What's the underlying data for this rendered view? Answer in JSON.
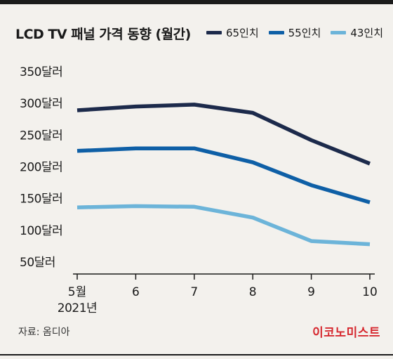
{
  "header": {
    "title": "LCD TV 패널 가격 동향 (월간)"
  },
  "footer": {
    "source": "자료: 옴디아",
    "brand": "이코노미스트"
  },
  "colors": {
    "series_65": "#1c2a4b",
    "series_55": "#0e5fa6",
    "series_43": "#6cb4d9",
    "brand": "#d6282f"
  },
  "chart_data": {
    "type": "line",
    "title": "LCD TV 패널 가격 동향 (월간)",
    "xlabel": "",
    "ylabel": "",
    "x": [
      "5월",
      "6",
      "7",
      "8",
      "9",
      "10"
    ],
    "x_tick_labels": [
      "5월",
      "6",
      "7",
      "8",
      "9",
      "10"
    ],
    "x_year_label": "2021년",
    "y_tick_values": [
      50,
      100,
      150,
      200,
      250,
      300,
      350
    ],
    "y_tick_labels": [
      "50달러",
      "100달러",
      "150달러",
      "200달러",
      "250달러",
      "300달러",
      "350달러"
    ],
    "ylim": [
      50,
      350
    ],
    "grid": false,
    "legend_position": "top-right",
    "series": [
      {
        "name": "65인치",
        "color": "#1c2a4b",
        "values": [
          288,
          294,
          297,
          284,
          241,
          204
        ]
      },
      {
        "name": "55인치",
        "color": "#0e5fa6",
        "values": [
          224,
          228,
          228,
          206,
          170,
          143
        ]
      },
      {
        "name": "43인치",
        "color": "#6cb4d9",
        "values": [
          135,
          137,
          136,
          119,
          82,
          77
        ]
      }
    ]
  }
}
